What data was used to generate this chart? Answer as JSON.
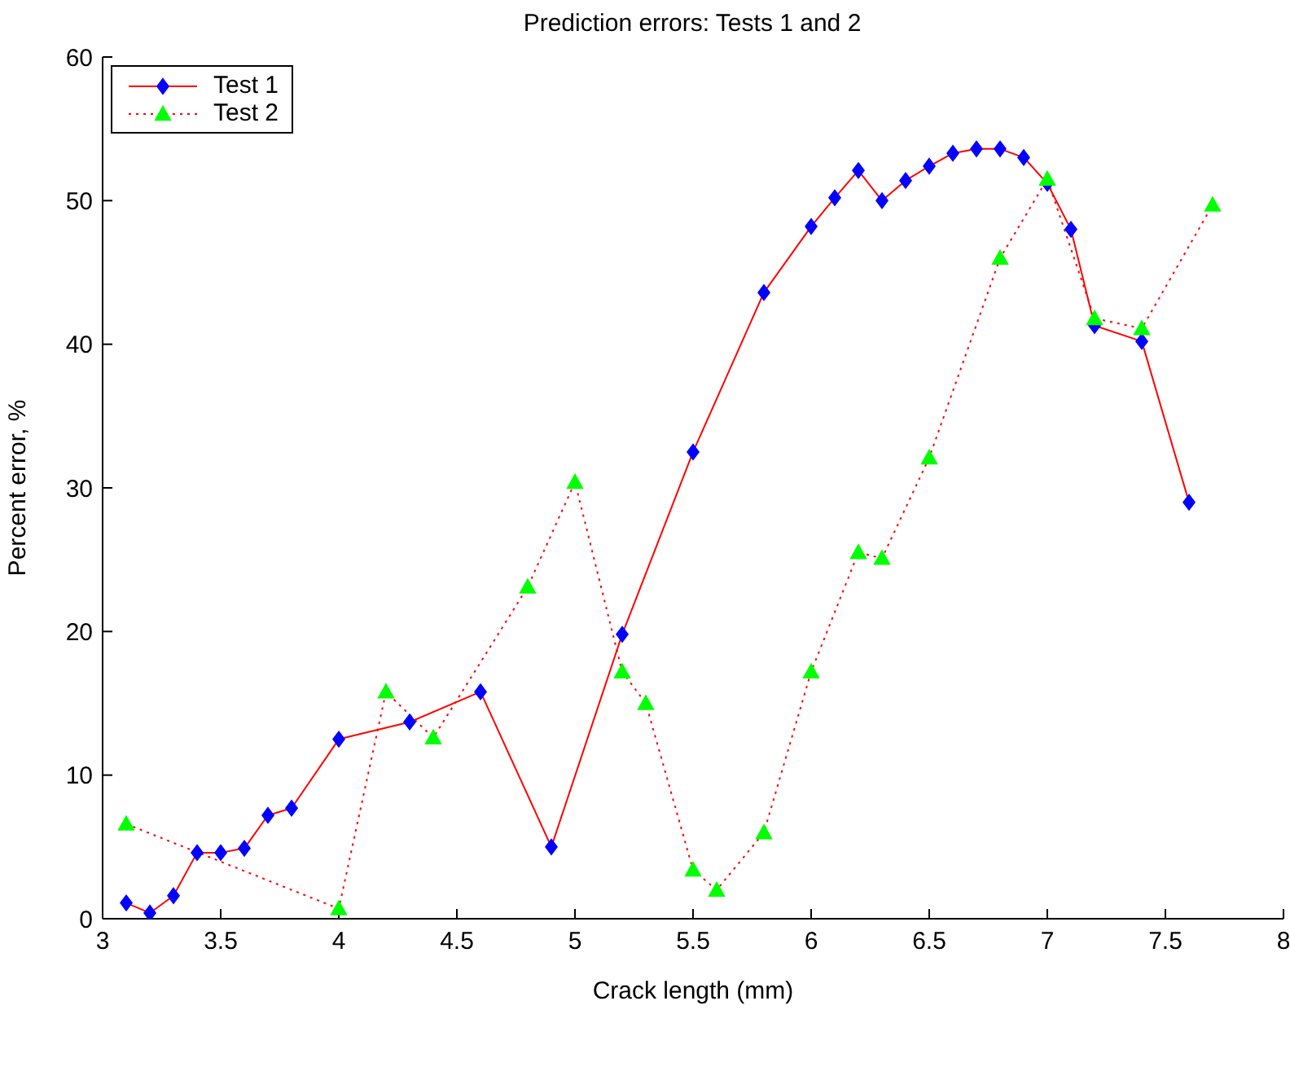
{
  "chart_data": {
    "type": "line",
    "title": "Prediction errors: Tests 1 and 2",
    "xlabel": "Crack length (mm)",
    "ylabel": "Percent error, %",
    "xlim": [
      3,
      8
    ],
    "xticks": [
      3,
      3.5,
      4,
      4.5,
      5,
      5.5,
      6,
      6.5,
      7,
      7.5,
      8
    ],
    "ylim": [
      0,
      60
    ],
    "yticks": [
      0,
      10,
      20,
      30,
      40,
      50,
      60
    ],
    "legend": "top left",
    "grid": false,
    "series": [
      {
        "name": "Test 1",
        "color": "#ff0000",
        "marker": "diamond",
        "line_style": "solid",
        "colors": [
          "#0000ff",
          "#0000ff",
          "#0000ff",
          "#0000ff",
          "#0000ff",
          "#0000ff",
          "#0000ff",
          "#0000ff",
          "#0000ff",
          "#0000ff",
          "#0000ff",
          "#0000ff",
          "#0000ff",
          "#0000ff",
          "#0000ff",
          "#0000ff",
          "#0000ff",
          "#0000ff",
          "#0000ff",
          "#0000ff",
          "#0000ff",
          "#0000ff",
          "#0000ff",
          "#0000ff",
          "#0000ff",
          "#0000ff",
          "#0000ff",
          "#0000ff",
          "#0000ff",
          "#0000ff"
        ],
        "x": [
          3.1,
          3.2,
          3.3,
          3.4,
          3.5,
          3.6,
          3.7,
          3.8,
          4.0,
          4.3,
          4.6,
          4.9,
          5.2,
          5.5,
          5.8,
          6.0,
          6.1,
          6.2,
          6.3,
          6.4,
          6.5,
          6.6,
          6.7,
          6.8,
          6.9,
          7.0,
          7.1,
          7.2,
          7.4,
          7.6
        ],
        "values": [
          1.1,
          0.4,
          1.6,
          4.6,
          4.6,
          4.9,
          7.2,
          7.7,
          12.5,
          13.7,
          15.8,
          5.0,
          19.8,
          32.5,
          43.6,
          48.2,
          50.2,
          52.1,
          50.0,
          51.4,
          52.4,
          53.3,
          53.6,
          53.6,
          53.0,
          51.2,
          48.0,
          41.3,
          40.2,
          29.0
        ]
      },
      {
        "name": "Test 2",
        "color": "#ff0000",
        "marker": "triangle",
        "line_style": "dotted",
        "colors": [
          "#00ff00",
          "#00ff00",
          "#00ff00",
          "#00ff00",
          "#00ff00",
          "#00ff00",
          "#00ff00",
          "#00ff00",
          "#00ff00",
          "#00ff00",
          "#00ff00",
          "#00ff00",
          "#00ff00",
          "#00ff00",
          "#00ff00",
          "#00ff00",
          "#00ff00",
          "#00ff00",
          "#00ff00",
          "#00ff00"
        ],
        "x": [
          3.1,
          4.0,
          4.2,
          4.4,
          4.8,
          5.0,
          5.2,
          5.3,
          5.5,
          5.6,
          5.8,
          6.0,
          6.2,
          6.3,
          6.5,
          6.8,
          7.0,
          7.2,
          7.4,
          7.7
        ],
        "values": [
          6.6,
          0.7,
          15.8,
          12.6,
          23.1,
          30.4,
          17.2,
          15.0,
          3.4,
          2.0,
          6.0,
          17.2,
          25.5,
          25.1,
          32.1,
          46.0,
          51.5,
          41.8,
          41.1,
          49.7
        ]
      }
    ]
  }
}
